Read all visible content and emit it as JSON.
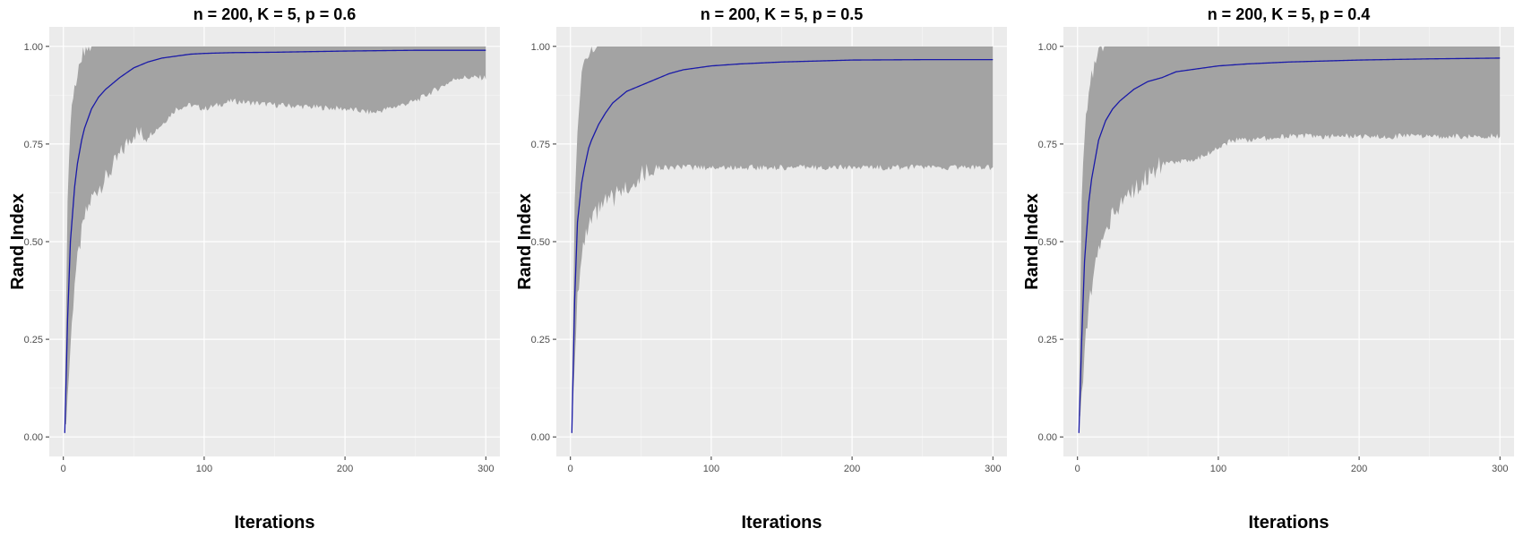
{
  "chart_data": [
    {
      "type": "area",
      "title": "n = 200, K = 5, p = 0.6",
      "xlabel": "Iterations",
      "ylabel": "Rand Index",
      "xlim": [
        -10,
        310
      ],
      "ylim": [
        -0.05,
        1.05
      ],
      "x_ticks": [
        0,
        100,
        200,
        300
      ],
      "x_tick_labels": [
        "0",
        "100",
        "200",
        "300"
      ],
      "y_ticks": [
        0,
        0.25,
        0.5,
        0.75,
        1.0
      ],
      "y_tick_labels": [
        "0.00",
        "0.25",
        "0.50",
        "0.75",
        "1.00"
      ],
      "grid": true,
      "line_color": "#1a1aa8",
      "band_color": "#a3a3a3",
      "series": [
        {
          "x": [
            1,
            3,
            5,
            8,
            10,
            13,
            15,
            20,
            25,
            30,
            40,
            50,
            60,
            70,
            80,
            90,
            100,
            120,
            150,
            200,
            250,
            300
          ],
          "values": [
            0.01,
            0.3,
            0.5,
            0.64,
            0.7,
            0.76,
            0.79,
            0.84,
            0.87,
            0.89,
            0.92,
            0.945,
            0.96,
            0.97,
            0.975,
            0.98,
            0.982,
            0.984,
            0.985,
            0.988,
            0.99,
            0.99
          ]
        }
      ],
      "band": {
        "x": [
          1,
          3,
          5,
          8,
          10,
          13,
          15,
          20,
          25,
          30,
          40,
          50,
          60,
          70,
          80,
          90,
          100,
          120,
          150,
          200,
          220,
          250,
          270,
          280,
          300
        ],
        "lower": [
          0.01,
          0.1,
          0.23,
          0.4,
          0.45,
          0.52,
          0.56,
          0.61,
          0.64,
          0.66,
          0.72,
          0.78,
          0.77,
          0.8,
          0.84,
          0.85,
          0.84,
          0.86,
          0.85,
          0.84,
          0.83,
          0.86,
          0.9,
          0.92,
          0.92
        ],
        "upper": [
          0.05,
          0.6,
          0.8,
          0.9,
          0.93,
          0.97,
          0.99,
          1.0,
          1.0,
          1.0,
          1.0,
          1.0,
          1.0,
          1.0,
          1.0,
          1.0,
          1.0,
          1.0,
          1.0,
          1.0,
          1.0,
          1.0,
          1.0,
          1.0,
          1.0
        ]
      }
    },
    {
      "type": "area",
      "title": "n = 200, K = 5, p = 0.5",
      "xlabel": "Iterations",
      "ylabel": "Rand Index",
      "xlim": [
        -10,
        310
      ],
      "ylim": [
        -0.05,
        1.05
      ],
      "x_ticks": [
        0,
        100,
        200,
        300
      ],
      "x_tick_labels": [
        "0",
        "100",
        "200",
        "300"
      ],
      "y_ticks": [
        0,
        0.25,
        0.5,
        0.75,
        1.0
      ],
      "y_tick_labels": [
        "0.00",
        "0.25",
        "0.50",
        "0.75",
        "1.00"
      ],
      "grid": true,
      "line_color": "#1a1aa8",
      "band_color": "#a3a3a3",
      "series": [
        {
          "x": [
            1,
            3,
            5,
            8,
            10,
            13,
            15,
            20,
            25,
            30,
            40,
            50,
            60,
            70,
            80,
            90,
            100,
            120,
            150,
            200,
            250,
            300
          ],
          "values": [
            0.01,
            0.35,
            0.55,
            0.65,
            0.69,
            0.74,
            0.76,
            0.8,
            0.83,
            0.855,
            0.885,
            0.9,
            0.915,
            0.93,
            0.94,
            0.945,
            0.95,
            0.955,
            0.96,
            0.965,
            0.966,
            0.966
          ]
        }
      ],
      "band": {
        "x": [
          1,
          3,
          5,
          8,
          10,
          13,
          15,
          20,
          25,
          30,
          40,
          50,
          55,
          60,
          100,
          150,
          200,
          250,
          300
        ],
        "lower": [
          0.01,
          0.2,
          0.37,
          0.45,
          0.5,
          0.53,
          0.55,
          0.58,
          0.6,
          0.61,
          0.64,
          0.67,
          0.68,
          0.69,
          0.69,
          0.69,
          0.69,
          0.69,
          0.69
        ],
        "upper": [
          0.05,
          0.6,
          0.8,
          0.92,
          0.95,
          0.98,
          0.99,
          1.0,
          1.0,
          1.0,
          1.0,
          1.0,
          1.0,
          1.0,
          1.0,
          1.0,
          1.0,
          1.0,
          1.0
        ]
      }
    },
    {
      "type": "area",
      "title": "n = 200, K = 5, p = 0.4",
      "xlabel": "Iterations",
      "ylabel": "Rand Index",
      "xlim": [
        -10,
        310
      ],
      "ylim": [
        -0.05,
        1.05
      ],
      "x_ticks": [
        0,
        100,
        200,
        300
      ],
      "x_tick_labels": [
        "0",
        "100",
        "200",
        "300"
      ],
      "y_ticks": [
        0,
        0.25,
        0.5,
        0.75,
        1.0
      ],
      "y_tick_labels": [
        "0.00",
        "0.25",
        "0.50",
        "0.75",
        "1.00"
      ],
      "grid": true,
      "line_color": "#1a1aa8",
      "band_color": "#a3a3a3",
      "series": [
        {
          "x": [
            1,
            3,
            5,
            8,
            10,
            13,
            15,
            20,
            25,
            30,
            40,
            50,
            60,
            70,
            80,
            90,
            100,
            120,
            150,
            200,
            250,
            300
          ],
          "values": [
            0.01,
            0.25,
            0.45,
            0.6,
            0.66,
            0.72,
            0.76,
            0.81,
            0.84,
            0.86,
            0.89,
            0.91,
            0.92,
            0.935,
            0.94,
            0.945,
            0.95,
            0.955,
            0.96,
            0.965,
            0.968,
            0.97
          ]
        }
      ],
      "band": {
        "x": [
          1,
          3,
          5,
          8,
          10,
          13,
          15,
          20,
          25,
          30,
          40,
          50,
          60,
          70,
          80,
          90,
          100,
          110,
          120,
          150,
          200,
          250,
          300
        ],
        "lower": [
          0.01,
          0.1,
          0.23,
          0.33,
          0.38,
          0.44,
          0.48,
          0.52,
          0.57,
          0.6,
          0.63,
          0.67,
          0.7,
          0.7,
          0.71,
          0.72,
          0.74,
          0.76,
          0.76,
          0.77,
          0.77,
          0.77,
          0.77
        ],
        "upper": [
          0.05,
          0.6,
          0.78,
          0.88,
          0.92,
          0.96,
          0.99,
          1.0,
          1.0,
          1.0,
          1.0,
          1.0,
          1.0,
          1.0,
          1.0,
          1.0,
          1.0,
          1.0,
          1.0,
          1.0,
          1.0,
          1.0,
          1.0
        ]
      }
    }
  ]
}
